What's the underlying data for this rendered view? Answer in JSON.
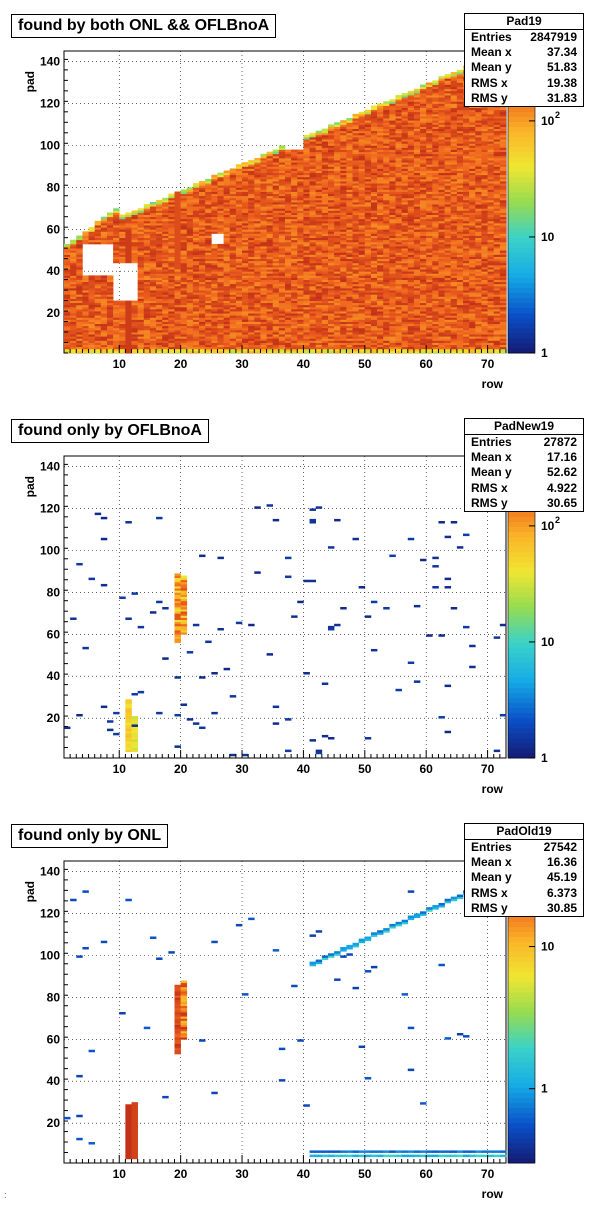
{
  "chart_data": [
    {
      "type": "heatmap",
      "name": "Pad19",
      "title": "found by both ONL && OFLBnoA",
      "xlabel": "row",
      "ylabel": "pad",
      "xlim": [
        1,
        73
      ],
      "ylim": [
        1,
        145
      ],
      "xticks": [
        10,
        20,
        30,
        40,
        50,
        60,
        70
      ],
      "yticks": [
        20,
        40,
        60,
        80,
        100,
        120,
        140
      ],
      "zscale": "log",
      "zticks": [
        "1",
        "10",
        "10"
      ],
      "zticks_exp": [
        "",
        "",
        "2"
      ],
      "zlim": [
        1,
        400
      ],
      "grid": true,
      "stats": {
        "name": "Pad19",
        "rows": [
          [
            "Entries",
            "2847919"
          ],
          [
            "Mean x",
            "37.34"
          ],
          [
            "Mean y",
            "51.83"
          ],
          [
            "RMS x",
            "19.38"
          ],
          [
            "RMS y",
            "31.83"
          ]
        ]
      }
    },
    {
      "type": "heatmap",
      "name": "PadNew19",
      "title": "found only by OFLBnoA",
      "xlabel": "row",
      "ylabel": "pad",
      "xlim": [
        1,
        73
      ],
      "ylim": [
        1,
        145
      ],
      "xticks": [
        10,
        20,
        30,
        40,
        50,
        60,
        70
      ],
      "yticks": [
        20,
        40,
        60,
        80,
        100,
        120,
        140
      ],
      "zscale": "log",
      "zticks": [
        "1",
        "10",
        "10"
      ],
      "zticks_exp": [
        "",
        "",
        "2"
      ],
      "zlim": [
        1,
        400
      ],
      "grid": true,
      "stats": {
        "name": "PadNew19",
        "rows": [
          [
            "Entries",
            "27872"
          ],
          [
            "Mean x",
            "17.16"
          ],
          [
            "Mean y",
            "52.62"
          ],
          [
            "RMS x",
            "4.922"
          ],
          [
            "RMS y",
            "30.65"
          ]
        ]
      }
    },
    {
      "type": "heatmap",
      "name": "PadOld19",
      "title": "found only by ONL",
      "xlabel": "row",
      "ylabel": "pad",
      "xlim": [
        1,
        73
      ],
      "ylim": [
        1,
        145
      ],
      "xticks": [
        10,
        20,
        30,
        40,
        50,
        60,
        70
      ],
      "yticks": [
        20,
        40,
        60,
        80,
        100,
        120,
        140
      ],
      "zscale": "log",
      "zticks": [
        "1",
        "10"
      ],
      "zticks_exp": [
        "",
        ""
      ],
      "zlim": [
        0.3,
        40
      ],
      "grid": true,
      "stats": {
        "name": "PadOld19",
        "rows": [
          [
            "Entries",
            "27542"
          ],
          [
            "Mean x",
            "16.36"
          ],
          [
            "Mean y",
            "45.19"
          ],
          [
            "RMS x",
            "6.373"
          ],
          [
            "RMS y",
            "30.85"
          ]
        ]
      }
    }
  ],
  "footnote": ":"
}
